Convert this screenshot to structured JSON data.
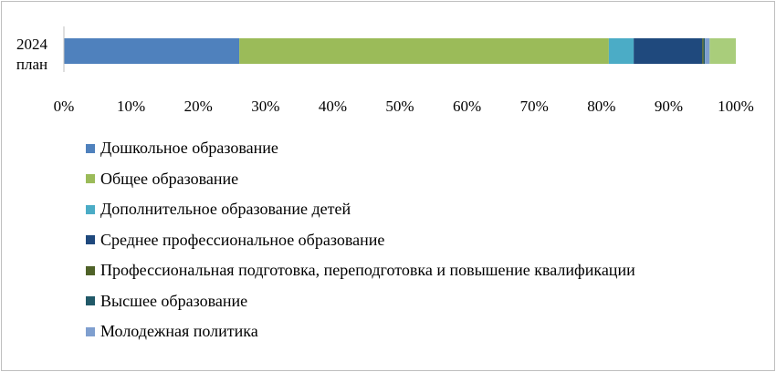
{
  "chart_data": {
    "type": "bar",
    "orientation": "horizontal",
    "stacked": true,
    "percent_stacked": true,
    "categories": [
      "2024 план"
    ],
    "category_lines": [
      [
        "2024",
        "план"
      ]
    ],
    "xlim": [
      0,
      100
    ],
    "xticks": [
      "0%",
      "10%",
      "20%",
      "30%",
      "40%",
      "50%",
      "60%",
      "70%",
      "80%",
      "90%",
      "100%"
    ],
    "grid": false,
    "legend_position": "bottom",
    "series": [
      {
        "name": "Дошкольное образование",
        "values": [
          26.1
        ],
        "color": "#4f81bd"
      },
      {
        "name": "Общее образование",
        "values": [
          55.0
        ],
        "color": "#9bbb59"
      },
      {
        "name": "Дополнительное образование детей",
        "values": [
          3.7
        ],
        "color": "#4bacc6"
      },
      {
        "name": "Среднее профессиональное образование",
        "values": [
          10.2
        ],
        "color": "#1f497d"
      },
      {
        "name": "Профессиональная подготовка, переподготовка и повышение квалификации",
        "values": [
          0.2
        ],
        "color": "#4f6228"
      },
      {
        "name": "Высшее образование",
        "values": [
          0.2
        ],
        "color": "#215968"
      },
      {
        "name": "Молодежная политика",
        "values": [
          0.7
        ],
        "color": "#7f9fcf"
      },
      {
        "name": "",
        "values": [
          3.9
        ],
        "color": "#a9cd7b"
      }
    ]
  }
}
